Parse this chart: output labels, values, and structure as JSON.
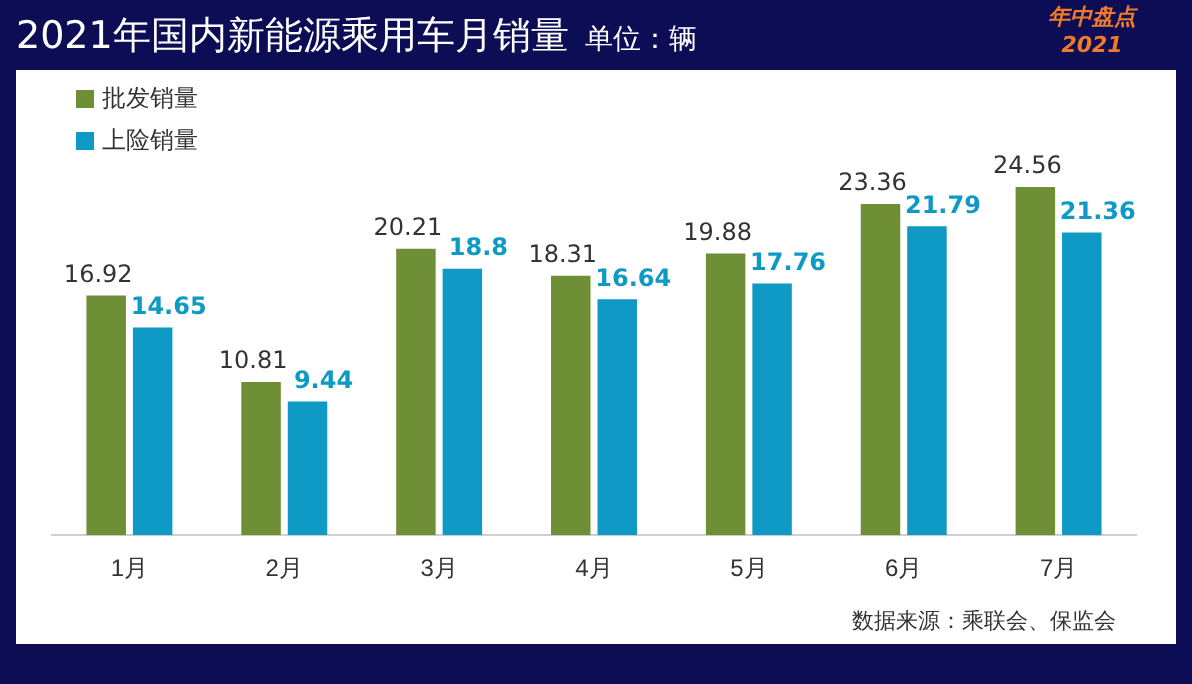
{
  "chart_data": {
    "type": "bar",
    "title": "2021年国内新能源乘用车月销量",
    "subtitle": "单位：辆",
    "categories": [
      "1月",
      "2月",
      "3月",
      "4月",
      "5月",
      "6月",
      "7月"
    ],
    "series": [
      {
        "name": "批发销量",
        "color": "#6e8f35",
        "values": [
          16.92,
          10.81,
          20.21,
          18.31,
          19.88,
          23.36,
          24.56
        ]
      },
      {
        "name": "上险销量",
        "color": "#0e9ac4",
        "values": [
          14.65,
          9.44,
          18.8,
          16.64,
          17.76,
          21.79,
          21.36
        ]
      }
    ],
    "data_labels": true,
    "legend": "top left",
    "grid": false,
    "relative": false,
    "annotations": [
      "年中盘点 2021",
      "数据来源：乘联会、保监会"
    ]
  }
}
